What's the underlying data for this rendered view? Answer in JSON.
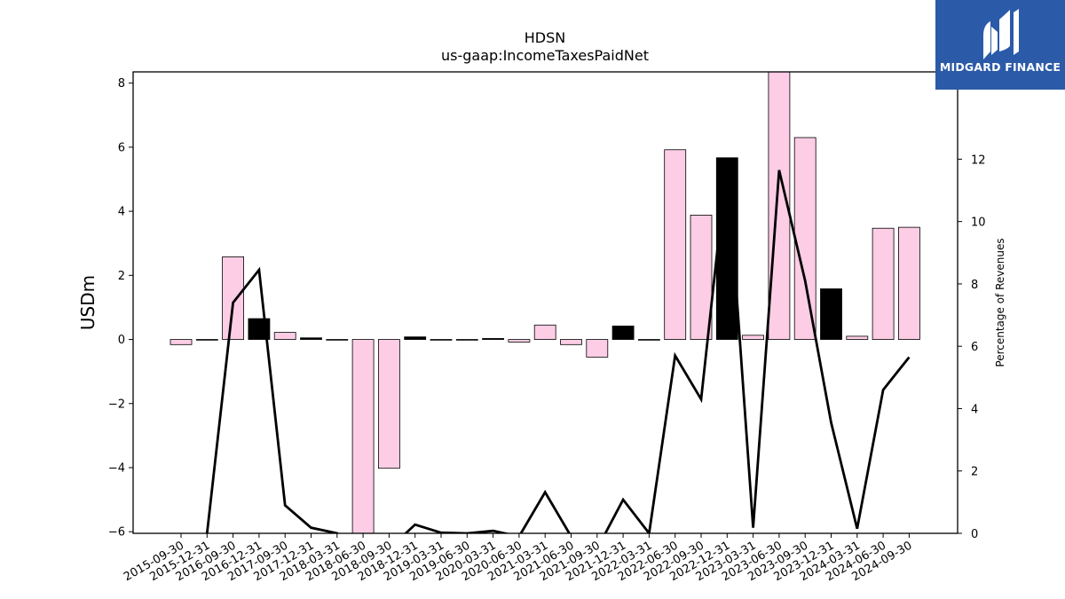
{
  "chart_data": {
    "type": "bar",
    "title": "HDSN",
    "subtitle": "us-gaap:IncomeTaxesPaidNet",
    "ylabel": "USDm",
    "y2label": "Percentage of Revenues",
    "ylim": [
      -6.05,
      8.35
    ],
    "y2lim": [
      0,
      14.8
    ],
    "yticks": [
      -6,
      -4,
      -2,
      0,
      2,
      4,
      6,
      8
    ],
    "y2ticks": [
      0,
      2,
      4,
      6,
      8,
      10,
      12
    ],
    "categories": [
      "2015-09-30",
      "2015-12-31",
      "2016-09-30",
      "2016-12-31",
      "2017-09-30",
      "2017-12-31",
      "2018-03-31",
      "2018-06-30",
      "2018-09-30",
      "2018-12-31",
      "2019-03-31",
      "2019-06-30",
      "2020-03-31",
      "2020-06-30",
      "2021-03-31",
      "2021-06-30",
      "2021-09-30",
      "2021-12-31",
      "2022-03-31",
      "2022-06-30",
      "2022-09-30",
      "2022-12-31",
      "2023-03-31",
      "2023-06-30",
      "2023-09-30",
      "2023-12-31",
      "2024-03-31",
      "2024-06-30",
      "2024-09-30"
    ],
    "series": [
      {
        "type": "bar",
        "values": [
          -0.16,
          0.0,
          2.58,
          0.65,
          0.22,
          0.05,
          0.0,
          -6.05,
          -4.02,
          0.08,
          0.0,
          0.0,
          0.03,
          -0.08,
          0.45,
          -0.16,
          -0.55,
          0.42,
          0.0,
          5.92,
          3.88,
          5.67,
          0.13,
          8.35,
          6.3,
          1.58,
          0.1,
          3.47,
          3.5
        ],
        "colors": [
          "#fccde5",
          "#fccde5",
          "#fccde5",
          "#000000",
          "#fccde5",
          "#000000",
          "#fccde5",
          "#fccde5",
          "#fccde5",
          "#000000",
          "#fccde5",
          "#fccde5",
          "#000000",
          "#fccde5",
          "#fccde5",
          "#fccde5",
          "#fccde5",
          "#000000",
          "#fccde5",
          "#fccde5",
          "#fccde5",
          "#000000",
          "#fccde5",
          "#fccde5",
          "#fccde5",
          "#000000",
          "#fccde5",
          "#fccde5",
          "#fccde5"
        ]
      },
      {
        "type": "line",
        "axis": "right",
        "color": "#000000",
        "values": [
          -0.5,
          0.0,
          7.4,
          8.45,
          0.9,
          0.18,
          0.0,
          -0.5,
          -0.5,
          0.28,
          0.02,
          0.0,
          0.08,
          -0.1,
          1.32,
          -0.1,
          -0.5,
          1.08,
          0.0,
          5.7,
          4.3,
          11.95,
          0.18,
          11.65,
          8.1,
          3.55,
          0.15,
          4.6,
          5.65
        ]
      }
    ],
    "grid": false,
    "legend": "none"
  },
  "logo": {
    "text": "MIDGARD FINANCE",
    "color": "#2b5aa8"
  }
}
